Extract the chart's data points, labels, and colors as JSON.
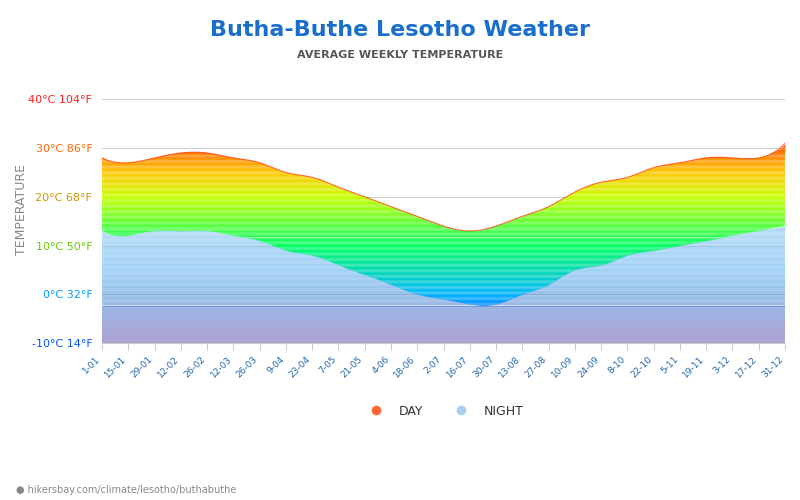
{
  "title": "Butha-Buthe Lesotho Weather",
  "subtitle": "AVERAGE WEEKLY TEMPERATURE",
  "ylabel": "TEMPERATURE",
  "watermark": "hikersbay.com/climate/lesotho/buthabuthe",
  "ylim": [
    -10,
    40
  ],
  "yticks": [
    40,
    30,
    20,
    10,
    0,
    -10
  ],
  "ytick_labels": [
    "40°C 104°F",
    "30°C 86°F",
    "20°C 68°F",
    "10°C 50°F",
    "0°C 32°F",
    "-10°C 14°F"
  ],
  "ytick_colors": [
    "#ff2020",
    "#ff6600",
    "#cc9900",
    "#66cc00",
    "#0099ff",
    "#0055ff"
  ],
  "xtick_labels": [
    "1-01",
    "15-01",
    "29-01",
    "12-02",
    "26-02",
    "12-03",
    "26-03",
    "9-04",
    "23-04",
    "7-05",
    "21-05",
    "4-06",
    "18-06",
    "2-07",
    "16-07",
    "30-07",
    "13-08",
    "27-08",
    "10-09",
    "24-09",
    "8-10",
    "22-10",
    "5-11",
    "19-11",
    "3-12",
    "17-12",
    "31-12"
  ],
  "title_color": "#1a6fcc",
  "subtitle_color": "#555555",
  "background_color": "#ffffff",
  "grid_color": "#cccccc",
  "day_temp": [
    28,
    27,
    28,
    29,
    29,
    28,
    27,
    25,
    24,
    22,
    20,
    18,
    16,
    14,
    13,
    14,
    16,
    18,
    21,
    23,
    24,
    26,
    27,
    28,
    28,
    28,
    31
  ],
  "night_temp": [
    13,
    12,
    13,
    13,
    13,
    12,
    11,
    9,
    8,
    6,
    4,
    2,
    0,
    -1,
    -2,
    -2,
    0,
    2,
    5,
    6,
    8,
    9,
    10,
    11,
    12,
    13,
    14
  ],
  "legend_day_color": "#ff6633",
  "legend_night_color": "#aaccee"
}
